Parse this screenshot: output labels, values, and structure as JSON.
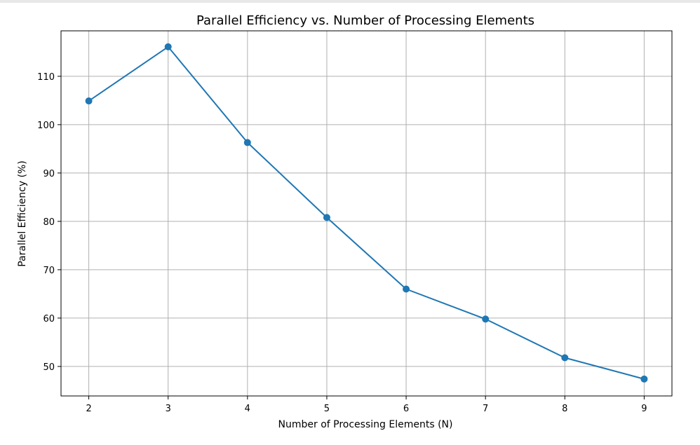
{
  "chart_data": {
    "type": "line",
    "title": "Parallel Efficiency vs. Number of Processing Elements",
    "xlabel": "Number of Processing Elements (N)",
    "ylabel": "Parallel Efficiency (%)",
    "x": [
      2,
      3,
      4,
      5,
      6,
      7,
      8,
      9
    ],
    "series": [
      {
        "values": [
          104.9,
          116.1,
          96.3,
          80.8,
          66.0,
          59.8,
          51.8,
          47.4
        ],
        "color": "#1f77b4",
        "marker": "circle"
      }
    ],
    "xlim": [
      1.65,
      9.35
    ],
    "ylim": [
      43.9,
      119.4
    ],
    "xticks": [
      "2",
      "3",
      "4",
      "5",
      "6",
      "7",
      "8",
      "9"
    ],
    "yticks": [
      "50",
      "60",
      "70",
      "80",
      "90",
      "100",
      "110"
    ],
    "grid": true
  }
}
